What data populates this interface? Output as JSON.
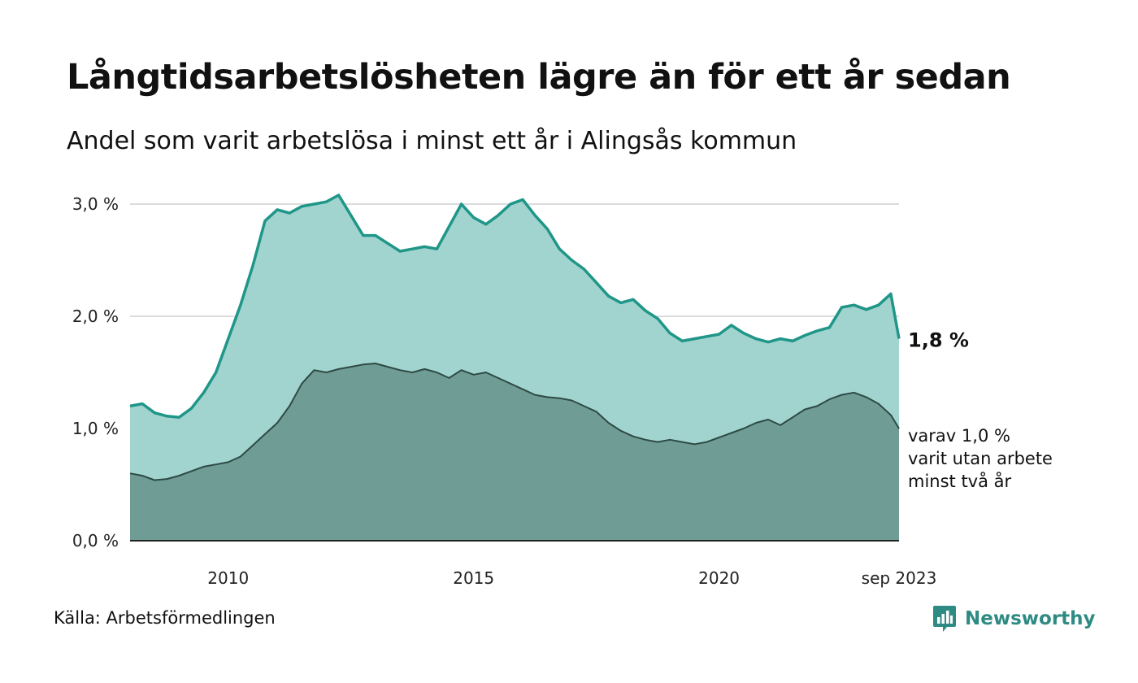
{
  "chart_data": {
    "type": "area",
    "title": "Långtidsarbetslösheten lägre än för ett år sedan",
    "subtitle": "Andel som varit arbetslösa i minst ett år i Alingsås kommun",
    "x_start": 2008.0,
    "x_end": 2023.667,
    "ylim": [
      0,
      3.1
    ],
    "yticks": [
      {
        "value": 0,
        "label": "0,0 %"
      },
      {
        "value": 1,
        "label": "1,0 %"
      },
      {
        "value": 2,
        "label": "2,0 %"
      },
      {
        "value": 3,
        "label": "3,0 %"
      }
    ],
    "xticks": [
      {
        "value": 2010,
        "label": "2010"
      },
      {
        "value": 2015,
        "label": "2015"
      },
      {
        "value": 2020,
        "label": "2020"
      },
      {
        "value": 2023.667,
        "label": "sep 2023"
      }
    ],
    "series": [
      {
        "name": "Minst ett år",
        "color": "#1f9688",
        "fill": "#a2d4cf",
        "points": [
          [
            2008.0,
            1.2
          ],
          [
            2008.25,
            1.22
          ],
          [
            2008.5,
            1.14
          ],
          [
            2008.75,
            1.11
          ],
          [
            2009.0,
            1.1
          ],
          [
            2009.25,
            1.18
          ],
          [
            2009.5,
            1.32
          ],
          [
            2009.75,
            1.5
          ],
          [
            2010.0,
            1.8
          ],
          [
            2010.25,
            2.1
          ],
          [
            2010.5,
            2.45
          ],
          [
            2010.75,
            2.85
          ],
          [
            2011.0,
            2.95
          ],
          [
            2011.25,
            2.92
          ],
          [
            2011.5,
            2.98
          ],
          [
            2011.75,
            3.0
          ],
          [
            2012.0,
            3.02
          ],
          [
            2012.25,
            3.08
          ],
          [
            2012.5,
            2.9
          ],
          [
            2012.75,
            2.72
          ],
          [
            2013.0,
            2.72
          ],
          [
            2013.25,
            2.65
          ],
          [
            2013.5,
            2.58
          ],
          [
            2013.75,
            2.6
          ],
          [
            2014.0,
            2.62
          ],
          [
            2014.25,
            2.6
          ],
          [
            2014.5,
            2.8
          ],
          [
            2014.75,
            3.0
          ],
          [
            2015.0,
            2.88
          ],
          [
            2015.25,
            2.82
          ],
          [
            2015.5,
            2.9
          ],
          [
            2015.75,
            3.0
          ],
          [
            2016.0,
            3.04
          ],
          [
            2016.25,
            2.9
          ],
          [
            2016.5,
            2.78
          ],
          [
            2016.75,
            2.6
          ],
          [
            2017.0,
            2.5
          ],
          [
            2017.25,
            2.42
          ],
          [
            2017.5,
            2.3
          ],
          [
            2017.75,
            2.18
          ],
          [
            2018.0,
            2.12
          ],
          [
            2018.25,
            2.15
          ],
          [
            2018.5,
            2.05
          ],
          [
            2018.75,
            1.98
          ],
          [
            2019.0,
            1.85
          ],
          [
            2019.25,
            1.78
          ],
          [
            2019.5,
            1.8
          ],
          [
            2019.75,
            1.82
          ],
          [
            2020.0,
            1.84
          ],
          [
            2020.25,
            1.92
          ],
          [
            2020.5,
            1.85
          ],
          [
            2020.75,
            1.8
          ],
          [
            2021.0,
            1.77
          ],
          [
            2021.25,
            1.8
          ],
          [
            2021.5,
            1.78
          ],
          [
            2021.75,
            1.83
          ],
          [
            2022.0,
            1.87
          ],
          [
            2022.25,
            1.9
          ],
          [
            2022.5,
            2.08
          ],
          [
            2022.75,
            2.1
          ],
          [
            2023.0,
            2.06
          ],
          [
            2023.25,
            2.1
          ],
          [
            2023.5,
            2.2
          ],
          [
            2023.667,
            1.8
          ]
        ],
        "label": "1,8 %"
      },
      {
        "name": "Minst två år",
        "color": "#2e4a44",
        "fill": "#6f9d96",
        "points": [
          [
            2008.0,
            0.6
          ],
          [
            2008.25,
            0.58
          ],
          [
            2008.5,
            0.54
          ],
          [
            2008.75,
            0.55
          ],
          [
            2009.0,
            0.58
          ],
          [
            2009.25,
            0.62
          ],
          [
            2009.5,
            0.66
          ],
          [
            2009.75,
            0.68
          ],
          [
            2010.0,
            0.7
          ],
          [
            2010.25,
            0.75
          ],
          [
            2010.5,
            0.85
          ],
          [
            2010.75,
            0.95
          ],
          [
            2011.0,
            1.05
          ],
          [
            2011.25,
            1.2
          ],
          [
            2011.5,
            1.4
          ],
          [
            2011.75,
            1.52
          ],
          [
            2012.0,
            1.5
          ],
          [
            2012.25,
            1.53
          ],
          [
            2012.5,
            1.55
          ],
          [
            2012.75,
            1.57
          ],
          [
            2013.0,
            1.58
          ],
          [
            2013.25,
            1.55
          ],
          [
            2013.5,
            1.52
          ],
          [
            2013.75,
            1.5
          ],
          [
            2014.0,
            1.53
          ],
          [
            2014.25,
            1.5
          ],
          [
            2014.5,
            1.45
          ],
          [
            2014.75,
            1.52
          ],
          [
            2015.0,
            1.48
          ],
          [
            2015.25,
            1.5
          ],
          [
            2015.5,
            1.45
          ],
          [
            2015.75,
            1.4
          ],
          [
            2016.0,
            1.35
          ],
          [
            2016.25,
            1.3
          ],
          [
            2016.5,
            1.28
          ],
          [
            2016.75,
            1.27
          ],
          [
            2017.0,
            1.25
          ],
          [
            2017.25,
            1.2
          ],
          [
            2017.5,
            1.15
          ],
          [
            2017.75,
            1.05
          ],
          [
            2018.0,
            0.98
          ],
          [
            2018.25,
            0.93
          ],
          [
            2018.5,
            0.9
          ],
          [
            2018.75,
            0.88
          ],
          [
            2019.0,
            0.9
          ],
          [
            2019.25,
            0.88
          ],
          [
            2019.5,
            0.86
          ],
          [
            2019.75,
            0.88
          ],
          [
            2020.0,
            0.92
          ],
          [
            2020.25,
            0.96
          ],
          [
            2020.5,
            1.0
          ],
          [
            2020.75,
            1.05
          ],
          [
            2021.0,
            1.08
          ],
          [
            2021.25,
            1.03
          ],
          [
            2021.5,
            1.1
          ],
          [
            2021.75,
            1.17
          ],
          [
            2022.0,
            1.2
          ],
          [
            2022.25,
            1.26
          ],
          [
            2022.5,
            1.3
          ],
          [
            2022.75,
            1.32
          ],
          [
            2023.0,
            1.28
          ],
          [
            2023.25,
            1.22
          ],
          [
            2023.5,
            1.12
          ],
          [
            2023.667,
            1.0
          ]
        ],
        "label_lines": [
          "varav 1,0 %",
          "varit utan arbete",
          "minst två år"
        ]
      }
    ],
    "grid": true,
    "source": "Källa: Arbetsförmedlingen",
    "brand": "Newsworthy"
  }
}
